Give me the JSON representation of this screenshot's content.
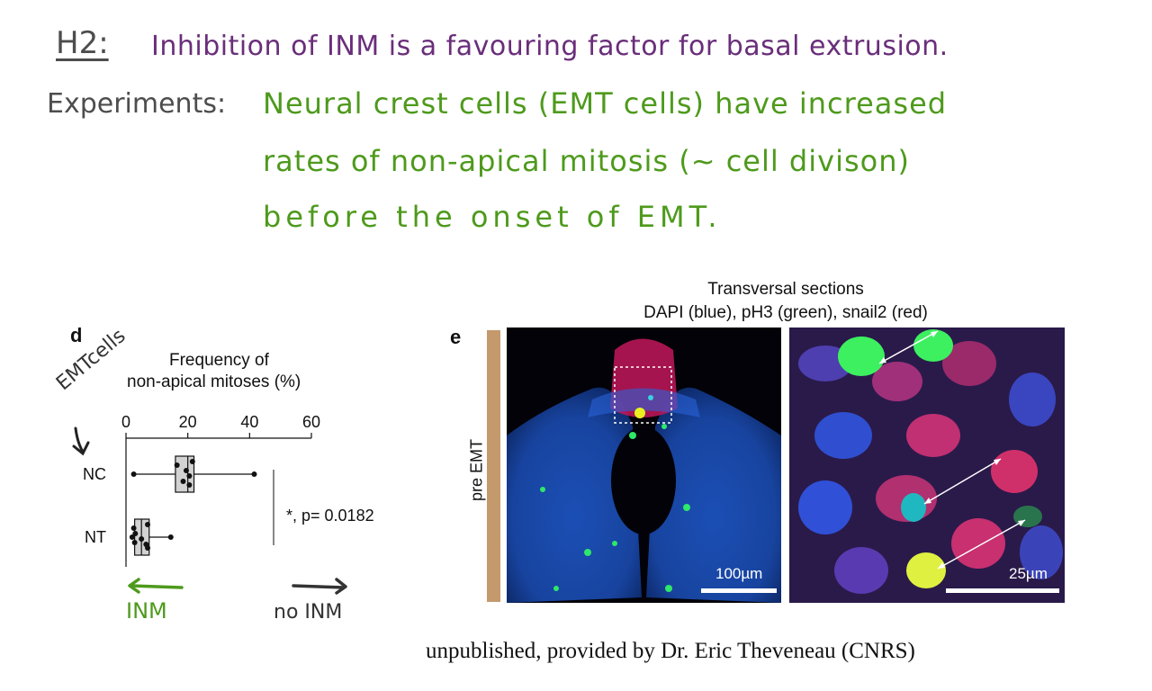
{
  "hypothesis": {
    "label": "H2:",
    "text": "Inhibition of INM is a favouring factor for basal extrusion."
  },
  "experiments": {
    "label": "Experiments:",
    "lines": [
      "Neural crest cells (EMT cells) have increased",
      "rates of non-apical mitosis (~ cell divison)",
      "before the onset of EMT."
    ]
  },
  "panel_d": {
    "letter": "d",
    "title_line1": "Frequency of",
    "title_line2": "non-apical mitoses (%)",
    "annotation_left": "EMTcells",
    "arrow_left_label": "INM",
    "arrow_right_label": "no INM",
    "significance": "*, p= 0.0182"
  },
  "chart_data": {
    "type": "box",
    "categories": [
      "NC",
      "NT"
    ],
    "xlim": [
      0,
      60
    ],
    "xticks": [
      0,
      20,
      40,
      60
    ],
    "xlabel": "Frequency of non-apical mitoses (%)",
    "series": [
      {
        "category": "NC",
        "min": 2.5,
        "q1": 16,
        "median": 20,
        "q3": 22,
        "max": 41.5,
        "points": [
          16.5,
          19.5,
          20.5,
          18.5,
          20.5,
          21.5
        ]
      },
      {
        "category": "NT",
        "min": 2,
        "q1": 2.8,
        "median": 5,
        "q3": 7.5,
        "max": 14.5,
        "points": [
          2.5,
          3,
          5,
          6.5,
          7,
          7,
          2.8
        ]
      }
    ],
    "annotation": "*, p= 0.0182"
  },
  "panel_e": {
    "letter": "e",
    "title_line1": "Transversal sections",
    "title_line2": "DAPI (blue), pH3 (green), snail2 (red)",
    "side_label": "pre EMT",
    "side_bar_color": "#c49a6c",
    "scale_left": "100µm",
    "scale_right": "25µm"
  },
  "credit": "unpublished, provided by Dr. Eric Theveneau (CNRS)"
}
